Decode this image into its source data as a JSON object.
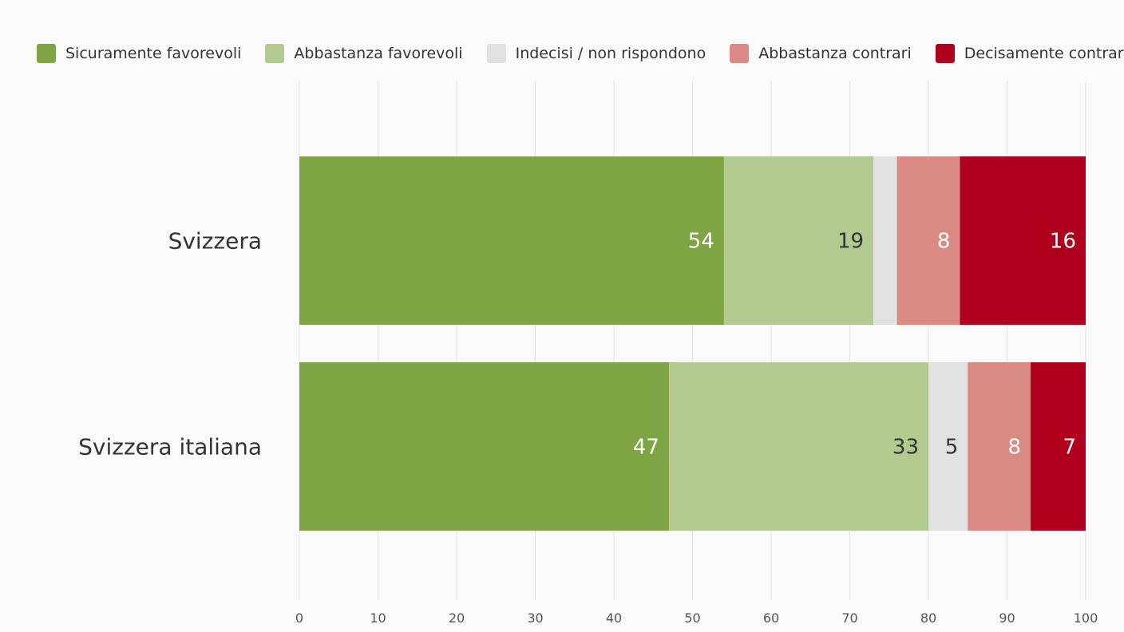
{
  "chart_data": {
    "type": "bar",
    "orientation": "horizontal",
    "stacked": true,
    "categories": [
      "Svizzera",
      "Svizzera italiana"
    ],
    "series": [
      {
        "name": "Sicuramente favorevoli",
        "color": "#7fa443",
        "label_color": "#ffffff",
        "values": [
          54,
          47
        ],
        "labels": [
          "54",
          "47"
        ]
      },
      {
        "name": "Abbastanza favorevoli",
        "color": "#b2ca90",
        "label_color": "#333333",
        "values": [
          19,
          33
        ],
        "labels": [
          "19",
          "33"
        ]
      },
      {
        "name": "Indecisi / non rispondono",
        "color": "#e1e1e1",
        "label_color": "#333333",
        "values": [
          3,
          5
        ],
        "labels": [
          "",
          "5"
        ]
      },
      {
        "name": "Abbastanza contrari",
        "color": "#db8985",
        "label_color": "#ffffff",
        "values": [
          8,
          8
        ],
        "labels": [
          "8",
          "8"
        ]
      },
      {
        "name": "Decisamente contrari",
        "color": "#b0001e",
        "label_color": "#ffffff",
        "values": [
          16,
          7
        ],
        "labels": [
          "16",
          "7"
        ]
      }
    ],
    "x_ticks": [
      "0",
      "10",
      "20",
      "30",
      "40",
      "50",
      "60",
      "70",
      "80",
      "90",
      "100"
    ],
    "xlim": [
      0,
      100
    ],
    "grid": true,
    "legend_position": "top"
  }
}
